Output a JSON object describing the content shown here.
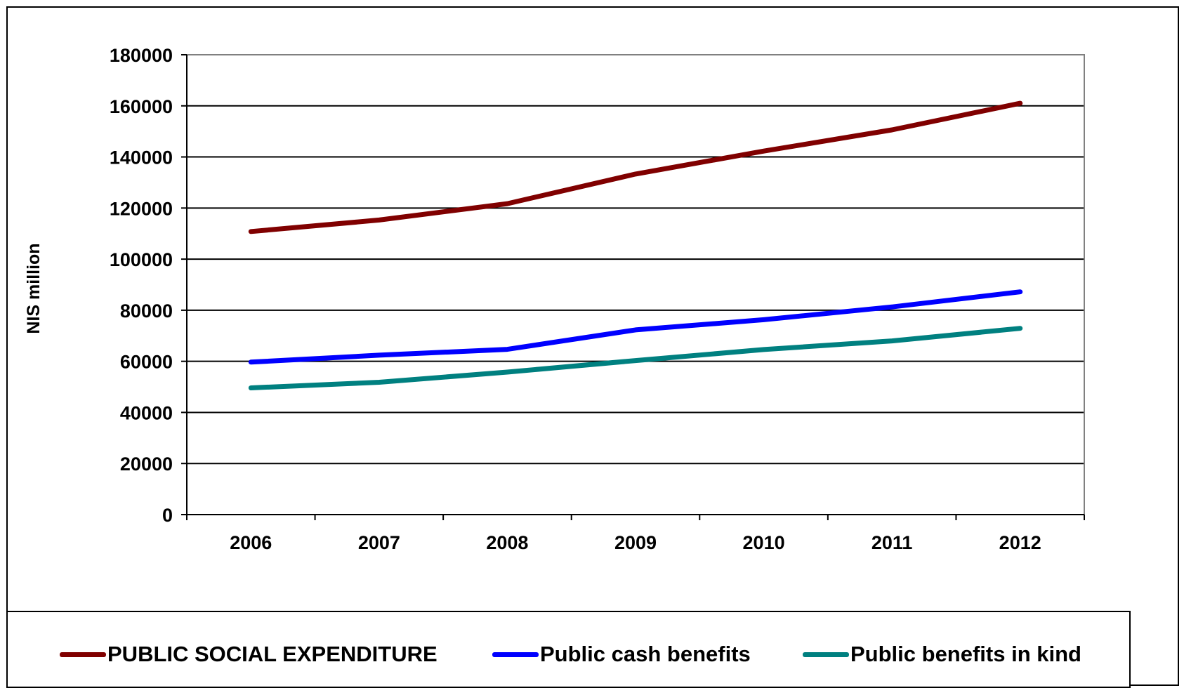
{
  "chart_data": {
    "type": "line",
    "title": "",
    "xlabel": "",
    "ylabel": "NIS million",
    "categories": [
      "2006",
      "2007",
      "2008",
      "2009",
      "2010",
      "2011",
      "2012"
    ],
    "ylim": [
      0,
      180000
    ],
    "yticks": [
      0,
      20000,
      40000,
      60000,
      80000,
      100000,
      120000,
      140000,
      160000,
      180000
    ],
    "grid": true,
    "legend_position": "bottom",
    "series": [
      {
        "name": "PUBLIC SOCIAL EXPENDITURE",
        "color": "#800000",
        "values": [
          110800,
          115300,
          121700,
          133300,
          142300,
          150600,
          161000
        ]
      },
      {
        "name": "Public cash benefits",
        "color": "#0000ff",
        "values": [
          59700,
          62400,
          64700,
          72300,
          76300,
          81300,
          87200
        ]
      },
      {
        "name": "Public benefits in kind",
        "color": "#008080",
        "values": [
          49600,
          51800,
          55800,
          60300,
          64600,
          68000,
          72900
        ]
      }
    ]
  }
}
